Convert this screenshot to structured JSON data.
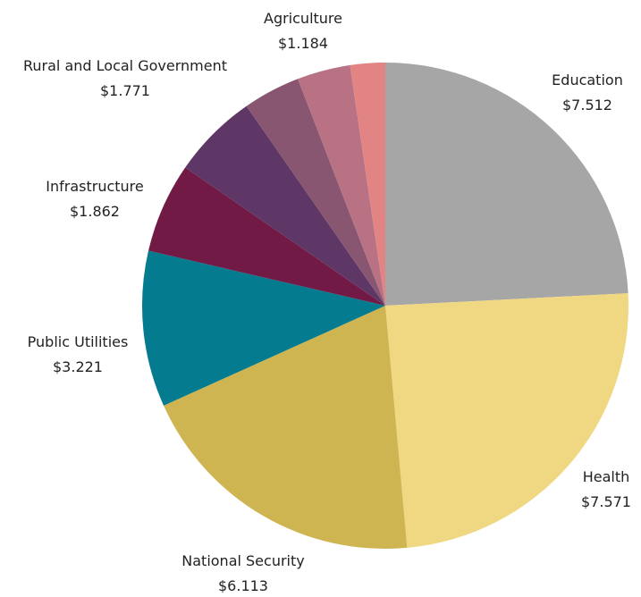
{
  "chart_data": {
    "type": "pie",
    "title": "",
    "start": "12 o'clock",
    "direction": "clockwise",
    "slices": [
      {
        "label": "Education",
        "value_label": "$7.512",
        "value": 7.512,
        "color": "#a6a6a6"
      },
      {
        "label": "Health",
        "value_label": "$7.571",
        "value": 7.571,
        "color": "#f0d882"
      },
      {
        "label": "National Security",
        "value_label": "$6.113",
        "value": 6.113,
        "color": "#cfb452"
      },
      {
        "label": "Public Utilities",
        "value_label": "$3.221",
        "value": 3.221,
        "color": "#047b8e"
      },
      {
        "label": "Infrastructure",
        "value_label": "$1.862",
        "value": 1.862,
        "color": "#721a46"
      },
      {
        "label": "Rural and Local Government",
        "value_label": "$1.771",
        "value": 1.771,
        "color": "#5e3766"
      },
      {
        "label": "Agriculture",
        "value_label": "$1.184",
        "value": 1.184,
        "color": "#885670"
      },
      {
        "label": "",
        "value_label": "",
        "value": 1.1,
        "color": "#b87284"
      },
      {
        "label": "",
        "value_label": "",
        "value": 0.72,
        "color": "#e28484"
      }
    ]
  }
}
